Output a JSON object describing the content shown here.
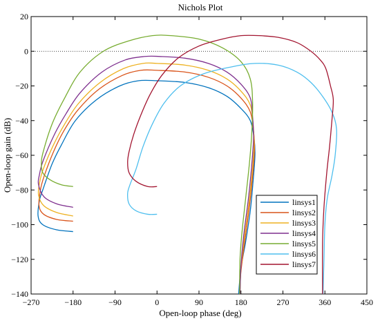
{
  "chart_data": {
    "type": "line",
    "title": "Nichols Plot",
    "xlabel": "Open-loop phase (deg)",
    "ylabel": "Open-loop gain (dB)",
    "xlim": [
      -270,
      450
    ],
    "ylim": [
      -140,
      20
    ],
    "xticks": [
      -270,
      -180,
      -90,
      0,
      90,
      180,
      270,
      360,
      450
    ],
    "yticks": [
      20,
      0,
      -20,
      -40,
      -60,
      -80,
      -100,
      -120,
      -140
    ],
    "xtick_labels": [
      "−270",
      "−180",
      "−90",
      "0",
      "90",
      "180",
      "270",
      "360",
      "450"
    ],
    "ytick_labels": [
      "20",
      "0",
      "−20",
      "−40",
      "−60",
      "−80",
      "−100",
      "−120",
      "−140"
    ],
    "reference_line": {
      "y": 0,
      "style": "dotted"
    },
    "grid": false,
    "legend_position": "bottom-right",
    "series": [
      {
        "name": "linsys1",
        "color": "#0072BD",
        "points": [
          [
            -180,
            -104
          ],
          [
            -215,
            -103
          ],
          [
            -245,
            -100
          ],
          [
            -255,
            -95
          ],
          [
            -252,
            -86
          ],
          [
            -245,
            -80
          ],
          [
            -225,
            -65
          ],
          [
            -205,
            -54
          ],
          [
            -175,
            -40
          ],
          [
            -130,
            -28
          ],
          [
            -80,
            -20
          ],
          [
            -40,
            -17
          ],
          [
            0,
            -17
          ],
          [
            60,
            -18
          ],
          [
            110,
            -21
          ],
          [
            150,
            -26
          ],
          [
            180,
            -33
          ],
          [
            200,
            -40
          ],
          [
            208,
            -50
          ],
          [
            210,
            -60
          ],
          [
            206,
            -75
          ],
          [
            200,
            -92
          ],
          [
            190,
            -110
          ],
          [
            180,
            -125
          ],
          [
            175,
            -140
          ]
        ]
      },
      {
        "name": "linsys2",
        "color": "#D95319",
        "points": [
          [
            -180,
            -98
          ],
          [
            -215,
            -97
          ],
          [
            -243,
            -94
          ],
          [
            -253,
            -89
          ],
          [
            -250,
            -80
          ],
          [
            -242,
            -72
          ],
          [
            -222,
            -58
          ],
          [
            -200,
            -46
          ],
          [
            -170,
            -34
          ],
          [
            -125,
            -22
          ],
          [
            -75,
            -14
          ],
          [
            -35,
            -11
          ],
          [
            0,
            -11
          ],
          [
            60,
            -12
          ],
          [
            110,
            -15
          ],
          [
            150,
            -20
          ],
          [
            180,
            -27
          ],
          [
            200,
            -35
          ],
          [
            207,
            -46
          ],
          [
            209,
            -57
          ],
          [
            205,
            -72
          ],
          [
            198,
            -90
          ],
          [
            188,
            -110
          ],
          [
            180,
            -127
          ],
          [
            177,
            -140
          ]
        ]
      },
      {
        "name": "linsys3",
        "color": "#EDB120",
        "points": [
          [
            -180,
            -95
          ],
          [
            -215,
            -93
          ],
          [
            -243,
            -89
          ],
          [
            -254,
            -83
          ],
          [
            -252,
            -76
          ],
          [
            -244,
            -68
          ],
          [
            -222,
            -54
          ],
          [
            -198,
            -42
          ],
          [
            -168,
            -30
          ],
          [
            -122,
            -18
          ],
          [
            -72,
            -10
          ],
          [
            -30,
            -7
          ],
          [
            0,
            -7
          ],
          [
            60,
            -8
          ],
          [
            110,
            -11
          ],
          [
            150,
            -16
          ],
          [
            180,
            -23
          ],
          [
            200,
            -31
          ],
          [
            206,
            -42
          ],
          [
            208,
            -54
          ],
          [
            204,
            -70
          ],
          [
            197,
            -88
          ],
          [
            187,
            -108
          ],
          [
            180,
            -125
          ],
          [
            178,
            -140
          ]
        ]
      },
      {
        "name": "linsys4",
        "color": "#7E2F8E",
        "points": [
          [
            -180,
            -90
          ],
          [
            -215,
            -88
          ],
          [
            -242,
            -84
          ],
          [
            -254,
            -77
          ],
          [
            -252,
            -71
          ],
          [
            -244,
            -63
          ],
          [
            -220,
            -48
          ],
          [
            -195,
            -36
          ],
          [
            -165,
            -24
          ],
          [
            -118,
            -12
          ],
          [
            -68,
            -5
          ],
          [
            -25,
            -3
          ],
          [
            5,
            -3
          ],
          [
            60,
            -4
          ],
          [
            110,
            -7
          ],
          [
            150,
            -12
          ],
          [
            180,
            -19
          ],
          [
            200,
            -27
          ],
          [
            205,
            -38
          ],
          [
            207,
            -50
          ],
          [
            203,
            -66
          ],
          [
            196,
            -85
          ],
          [
            186,
            -106
          ],
          [
            180,
            -124
          ],
          [
            178,
            -140
          ]
        ]
      },
      {
        "name": "linsys5",
        "color": "#77AC30",
        "points": [
          [
            -180,
            -78
          ],
          [
            -205,
            -77
          ],
          [
            -230,
            -74
          ],
          [
            -245,
            -70
          ],
          [
            -248,
            -65
          ],
          [
            -244,
            -58
          ],
          [
            -225,
            -42
          ],
          [
            -200,
            -28
          ],
          [
            -165,
            -12
          ],
          [
            -115,
            0
          ],
          [
            -60,
            6
          ],
          [
            -10,
            9
          ],
          [
            30,
            9
          ],
          [
            90,
            7
          ],
          [
            140,
            2
          ],
          [
            180,
            -6
          ],
          [
            200,
            -16
          ],
          [
            205,
            -30
          ],
          [
            203,
            -48
          ],
          [
            198,
            -65
          ],
          [
            190,
            -85
          ],
          [
            182,
            -105
          ],
          [
            178,
            -120
          ],
          [
            177,
            -140
          ]
        ]
      },
      {
        "name": "linsys6",
        "color": "#4DBEEE",
        "points": [
          [
            0,
            -94
          ],
          [
            -20,
            -94
          ],
          [
            -45,
            -92
          ],
          [
            -60,
            -88
          ],
          [
            -63,
            -82
          ],
          [
            -58,
            -77
          ],
          [
            -45,
            -68
          ],
          [
            -30,
            -55
          ],
          [
            -10,
            -42
          ],
          [
            15,
            -30
          ],
          [
            50,
            -20
          ],
          [
            100,
            -13
          ],
          [
            160,
            -9
          ],
          [
            210,
            -7
          ],
          [
            260,
            -8
          ],
          [
            300,
            -12
          ],
          [
            330,
            -18
          ],
          [
            355,
            -26
          ],
          [
            375,
            -35
          ],
          [
            385,
            -45
          ],
          [
            382,
            -60
          ],
          [
            375,
            -72
          ],
          [
            365,
            -85
          ],
          [
            360,
            -100
          ],
          [
            358,
            -120
          ],
          [
            356,
            -140
          ]
        ]
      },
      {
        "name": "linsys7",
        "color": "#A2142F",
        "points": [
          [
            0,
            -78
          ],
          [
            -20,
            -78
          ],
          [
            -45,
            -75
          ],
          [
            -60,
            -70
          ],
          [
            -63,
            -64
          ],
          [
            -60,
            -58
          ],
          [
            -50,
            -48
          ],
          [
            -35,
            -37
          ],
          [
            -15,
            -25
          ],
          [
            10,
            -14
          ],
          [
            45,
            -4
          ],
          [
            90,
            3
          ],
          [
            140,
            7
          ],
          [
            180,
            9
          ],
          [
            220,
            9
          ],
          [
            260,
            8
          ],
          [
            300,
            5
          ],
          [
            330,
            0
          ],
          [
            350,
            -5
          ],
          [
            362,
            -10
          ],
          [
            372,
            -20
          ],
          [
            378,
            -28
          ],
          [
            375,
            -40
          ],
          [
            370,
            -55
          ],
          [
            364,
            -70
          ],
          [
            358,
            -90
          ],
          [
            355,
            -110
          ],
          [
            355,
            -140
          ]
        ]
      }
    ]
  }
}
